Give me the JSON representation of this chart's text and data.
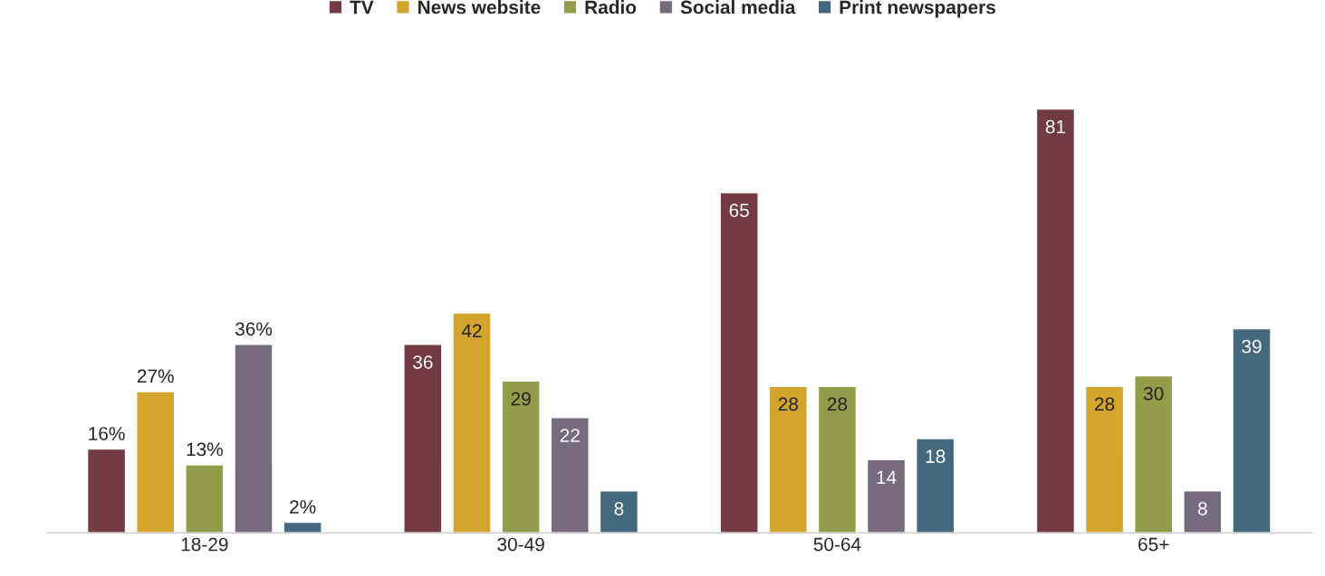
{
  "chart_data": {
    "type": "bar",
    "categories": [
      "18-29",
      "30-49",
      "50-64",
      "65+"
    ],
    "series": [
      {
        "name": "TV",
        "color": "#733a44",
        "values": [
          16,
          36,
          65,
          81
        ],
        "value_labels": [
          "16%",
          "36",
          "65",
          "81"
        ]
      },
      {
        "name": "News website",
        "color": "#d4a52c",
        "values": [
          27,
          42,
          28,
          28
        ],
        "value_labels": [
          "27%",
          "42",
          "28",
          "28"
        ]
      },
      {
        "name": "Radio",
        "color": "#939c48",
        "values": [
          13,
          29,
          28,
          30
        ],
        "value_labels": [
          "13%",
          "29",
          "28",
          "30"
        ]
      },
      {
        "name": "Social media",
        "color": "#756a7e",
        "values": [
          36,
          22,
          14,
          8
        ],
        "value_labels": [
          "36%",
          "22",
          "14",
          "8"
        ]
      },
      {
        "name": "Print newspapers",
        "color": "#44697f",
        "values": [
          2,
          8,
          18,
          39
        ],
        "value_labels": [
          "2%",
          "8",
          "18",
          "39"
        ]
      }
    ],
    "legend": "top",
    "grid": false,
    "tick_labels": "x"
  }
}
